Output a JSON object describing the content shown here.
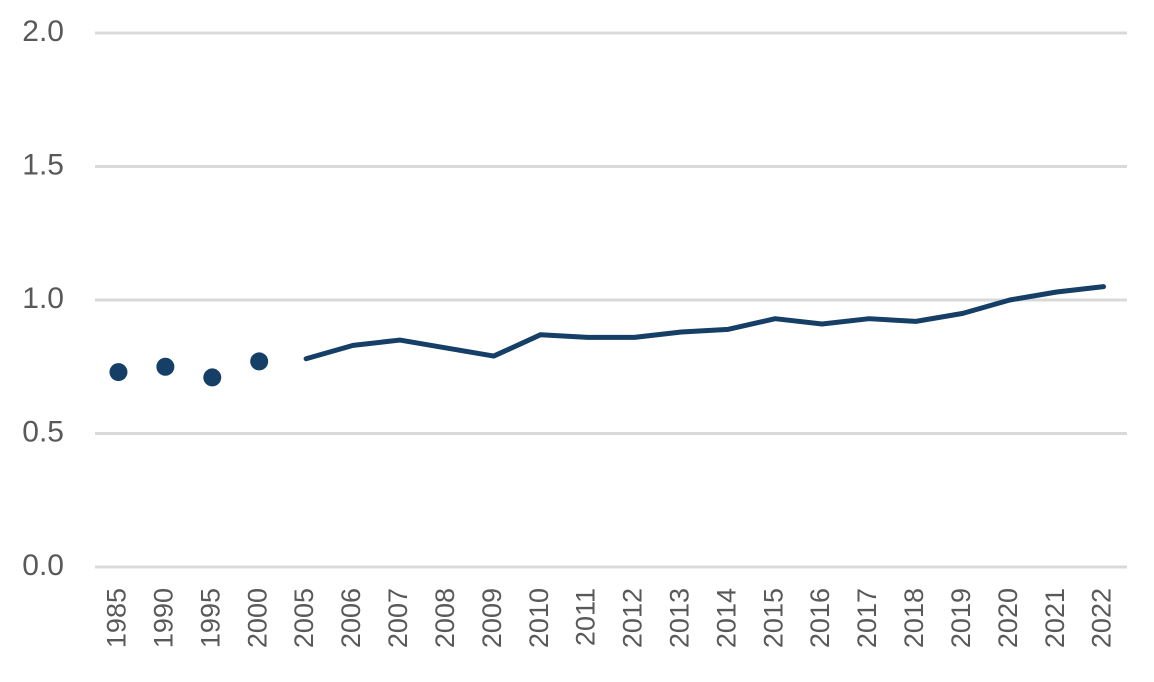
{
  "chart_data": {
    "type": "line",
    "categories": [
      "1985",
      "1990",
      "1995",
      "2000",
      "2005",
      "2006",
      "2007",
      "2008",
      "2009",
      "2010",
      "2011",
      "2012",
      "2013",
      "2014",
      "2015",
      "2016",
      "2017",
      "2018",
      "2019",
      "2020",
      "2021",
      "2022"
    ],
    "series": [
      {
        "style": "markers",
        "color": "#153f66",
        "values": [
          0.73,
          0.75,
          0.71,
          0.77,
          null,
          null,
          null,
          null,
          null,
          null,
          null,
          null,
          null,
          null,
          null,
          null,
          null,
          null,
          null,
          null,
          null,
          null
        ]
      },
      {
        "style": "line",
        "color": "#153f66",
        "values": [
          null,
          null,
          null,
          null,
          0.78,
          0.83,
          0.85,
          0.82,
          0.79,
          0.87,
          0.86,
          0.86,
          0.88,
          0.89,
          0.93,
          0.91,
          0.93,
          0.92,
          0.95,
          1.0,
          1.03,
          1.05
        ]
      }
    ],
    "ylim": [
      0,
      2
    ],
    "yticks": [
      {
        "value": 0,
        "label": "0.0"
      },
      0.5,
      {
        "value": 1,
        "label": "1.0"
      },
      1.5,
      {
        "value": 2,
        "label": "2.0"
      }
    ],
    "grid": true
  }
}
